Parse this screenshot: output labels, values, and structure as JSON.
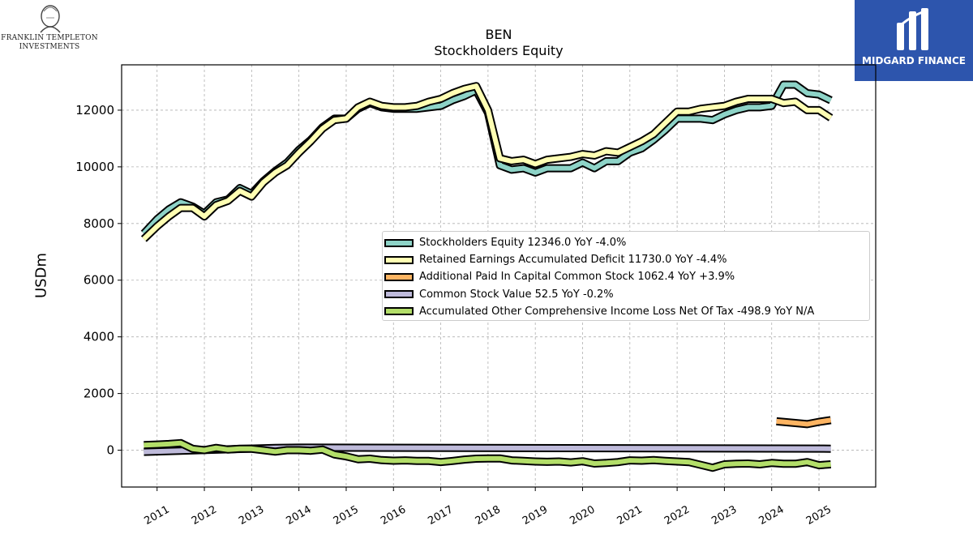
{
  "header": {
    "left_logo": {
      "line1": "FRANKLIN TEMPLETON",
      "line2": "INVESTMENTS"
    },
    "right_logo": {
      "text": "MIDGARD FINANCE",
      "color": "#2d55ad"
    }
  },
  "chart_data": {
    "type": "line",
    "title": "BEN",
    "subtitle": "Stockholders  Equity",
    "ylabel": "USDm",
    "ylim": [
      -1300,
      13600
    ],
    "xlim": [
      2010.25,
      2026.2
    ],
    "yticks": [
      0,
      2000,
      4000,
      6000,
      8000,
      10000,
      12000
    ],
    "ytick_labels": [
      "0",
      "2000",
      "4000",
      "6000",
      "8000",
      "10000",
      "12000"
    ],
    "xticks": [
      2011,
      2012,
      2013,
      2014,
      2015,
      2016,
      2017,
      2018,
      2019,
      2020,
      2021,
      2022,
      2023,
      2024,
      2025
    ],
    "xtick_labels": [
      "2011",
      "2012",
      "2013",
      "2014",
      "2015",
      "2016",
      "2017",
      "2018",
      "2019",
      "2020",
      "2021",
      "2022",
      "2023",
      "2024",
      "2025"
    ],
    "grid": true,
    "legend_position": "center-right",
    "series": [
      {
        "name": "Stockholders Equity",
        "legend": "Stockholders Equity  12346.0 YoY -4.0%",
        "color": "#8dd3c7",
        "x": [
          2010.72,
          2011.0,
          2011.25,
          2011.5,
          2011.75,
          2012.0,
          2012.25,
          2012.5,
          2012.75,
          2013.0,
          2013.25,
          2013.5,
          2013.75,
          2014.0,
          2014.25,
          2014.5,
          2014.75,
          2015.0,
          2015.25,
          2015.5,
          2015.75,
          2016.0,
          2016.25,
          2016.5,
          2016.75,
          2017.0,
          2017.25,
          2017.5,
          2017.75,
          2018.0,
          2018.25,
          2018.5,
          2018.75,
          2019.0,
          2019.25,
          2019.5,
          2019.75,
          2020.0,
          2020.25,
          2020.5,
          2020.75,
          2021.0,
          2021.25,
          2021.5,
          2021.75,
          2022.0,
          2022.25,
          2022.5,
          2022.75,
          2023.0,
          2023.25,
          2023.5,
          2023.75,
          2024.0,
          2024.25,
          2024.5,
          2024.75,
          2025.0,
          2025.25
        ],
        "y": [
          7650,
          8150,
          8500,
          8750,
          8600,
          8350,
          8750,
          8850,
          9250,
          9050,
          9500,
          9850,
          10150,
          10600,
          10950,
          11400,
          11700,
          11700,
          12050,
          12250,
          12100,
          12050,
          12050,
          12050,
          12100,
          12150,
          12350,
          12500,
          12700,
          11900,
          10050,
          9900,
          9950,
          9800,
          9950,
          9950,
          9950,
          10150,
          9950,
          10200,
          10200,
          10500,
          10650,
          10950,
          11300,
          11700,
          11700,
          11700,
          11650,
          11850,
          12000,
          12100,
          12100,
          12150,
          12900,
          12900,
          12600,
          12550,
          12346
        ]
      },
      {
        "name": "Retained Earnings Accumulated Deficit",
        "legend": "Retained Earnings Accumulated Deficit  11730.0 YoY -4.4%",
        "color": "#ffffb3",
        "x": [
          2010.72,
          2011.0,
          2011.25,
          2011.5,
          2011.75,
          2012.0,
          2012.25,
          2012.5,
          2012.75,
          2013.0,
          2013.25,
          2013.5,
          2013.75,
          2014.0,
          2014.25,
          2014.5,
          2014.75,
          2015.0,
          2015.25,
          2015.5,
          2015.75,
          2016.0,
          2016.25,
          2016.5,
          2016.75,
          2017.0,
          2017.25,
          2017.5,
          2017.75,
          2018.0,
          2018.25,
          2018.5,
          2018.75,
          2019.0,
          2019.25,
          2019.5,
          2019.75,
          2020.0,
          2020.25,
          2020.5,
          2020.75,
          2021.0,
          2021.25,
          2021.5,
          2021.75,
          2022.0,
          2022.25,
          2022.5,
          2022.75,
          2023.0,
          2023.25,
          2023.5,
          2023.75,
          2024.0,
          2024.25,
          2024.5,
          2024.75,
          2025.0,
          2025.25
        ],
        "y": [
          7450,
          7900,
          8250,
          8550,
          8550,
          8250,
          8650,
          8800,
          9150,
          8950,
          9450,
          9800,
          10050,
          10500,
          10900,
          11350,
          11650,
          11700,
          12100,
          12300,
          12150,
          12100,
          12100,
          12150,
          12300,
          12400,
          12600,
          12750,
          12850,
          12000,
          10300,
          10200,
          10250,
          10100,
          10250,
          10300,
          10350,
          10450,
          10400,
          10550,
          10500,
          10700,
          10900,
          11150,
          11550,
          11950,
          11950,
          12050,
          12100,
          12150,
          12300,
          12400,
          12400,
          12400,
          12250,
          12300,
          12000,
          12000,
          11730
        ]
      },
      {
        "name": "Additional Paid In Capital Common Stock",
        "legend": "Additional Paid In Capital Common Stock  1062.4 YoY +3.9%",
        "color": "#fdb462",
        "x": [
          2024.1,
          2024.5,
          2024.75,
          2025.0,
          2025.25
        ],
        "y": [
          1020,
          960,
          920,
          1000,
          1062
        ]
      },
      {
        "name": "Common Stock Value",
        "legend": "Common Stock Value  52.5 YoY -0.2%",
        "color": "#bebada",
        "x": [
          2010.72,
          2013.5,
          2014.0,
          2025.25
        ],
        "y": [
          -60,
          80,
          90,
          52
        ]
      },
      {
        "name": "Accumulated Other Comprehensive Income Loss Net Of Tax",
        "legend": "Accumulated Other Comprehensive Income Loss Net Of Tax  -498.9 YoY N/A",
        "color": "#b3de69",
        "x": [
          2010.72,
          2011.0,
          2011.25,
          2011.5,
          2011.75,
          2012.0,
          2012.25,
          2012.5,
          2012.75,
          2013.0,
          2013.25,
          2013.5,
          2013.75,
          2014.0,
          2014.25,
          2014.5,
          2014.75,
          2015.0,
          2015.25,
          2015.5,
          2015.75,
          2016.0,
          2016.25,
          2016.5,
          2016.75,
          2017.0,
          2017.25,
          2017.5,
          2017.75,
          2018.0,
          2018.25,
          2018.5,
          2018.75,
          2019.0,
          2019.25,
          2019.5,
          2019.75,
          2020.0,
          2020.25,
          2020.5,
          2020.75,
          2021.0,
          2021.25,
          2021.5,
          2021.75,
          2022.0,
          2022.25,
          2022.5,
          2022.75,
          2023.0,
          2023.25,
          2023.5,
          2023.75,
          2024.0,
          2024.25,
          2024.5,
          2024.75,
          2025.0,
          2025.25
        ],
        "y": [
          180,
          200,
          220,
          250,
          50,
          0,
          80,
          20,
          50,
          50,
          0,
          -50,
          0,
          0,
          -20,
          20,
          -150,
          -220,
          -320,
          -300,
          -350,
          -370,
          -360,
          -380,
          -380,
          -420,
          -380,
          -330,
          -300,
          -290,
          -290,
          -360,
          -380,
          -400,
          -410,
          -400,
          -430,
          -390,
          -470,
          -450,
          -420,
          -360,
          -370,
          -350,
          -380,
          -400,
          -420,
          -520,
          -620,
          -500,
          -480,
          -470,
          -500,
          -450,
          -480,
          -480,
          -420,
          -530,
          -499
        ]
      }
    ]
  }
}
